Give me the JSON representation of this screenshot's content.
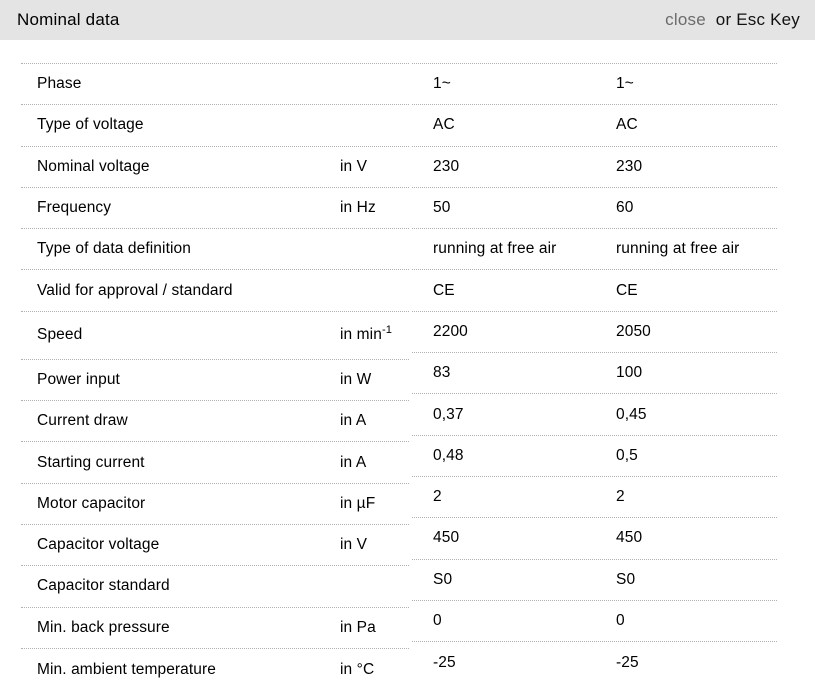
{
  "header": {
    "title": "Nominal data",
    "close_label": "close",
    "close_suffix": "or Esc Key"
  },
  "colors": {
    "header_bg": "#e4e4e4",
    "close_gray": "#6b6b6b",
    "divider": "#b0b0b0",
    "text": "#000000"
  },
  "table": {
    "rows": [
      {
        "label": "Phase",
        "unit": "",
        "unit_sup": "",
        "values": [
          "1~",
          "1~"
        ]
      },
      {
        "label": "Type of voltage",
        "unit": "",
        "unit_sup": "",
        "values": [
          "AC",
          "AC"
        ]
      },
      {
        "label": "Nominal voltage",
        "unit": "in V",
        "unit_sup": "",
        "values": [
          "230",
          "230"
        ]
      },
      {
        "label": "Frequency",
        "unit": "in Hz",
        "unit_sup": "",
        "values": [
          "50",
          "60"
        ]
      },
      {
        "label": "Type of data definition",
        "unit": "",
        "unit_sup": "",
        "values": [
          "running at free air",
          "running at free air"
        ]
      },
      {
        "label": "Valid for approval / standard",
        "unit": "",
        "unit_sup": "",
        "values": [
          "CE",
          "CE"
        ]
      },
      {
        "label": "Speed",
        "unit": "in min",
        "unit_sup": "-1",
        "values": [
          "2200",
          "2050"
        ]
      },
      {
        "label": "Power input",
        "unit": "in W",
        "unit_sup": "",
        "values": [
          "83",
          "100"
        ]
      },
      {
        "label": "Current draw",
        "unit": "in A",
        "unit_sup": "",
        "values": [
          "0,37",
          "0,45"
        ]
      },
      {
        "label": "Starting current",
        "unit": "in A",
        "unit_sup": "",
        "values": [
          "0,48",
          "0,5"
        ]
      },
      {
        "label": "Motor capacitor",
        "unit": "in µF",
        "unit_sup": "",
        "values": [
          "2",
          "2"
        ]
      },
      {
        "label": "Capacitor voltage",
        "unit": "in V",
        "unit_sup": "",
        "values": [
          "450",
          "450"
        ]
      },
      {
        "label": "Capacitor standard",
        "unit": "",
        "unit_sup": "",
        "values": [
          "S0",
          "S0"
        ]
      },
      {
        "label": "Min. back pressure",
        "unit": "in Pa",
        "unit_sup": "",
        "values": [
          "0",
          "0"
        ]
      },
      {
        "label": "Min. ambient temperature",
        "unit": "in °C",
        "unit_sup": "",
        "values": [
          "-25",
          "-25"
        ]
      }
    ]
  }
}
